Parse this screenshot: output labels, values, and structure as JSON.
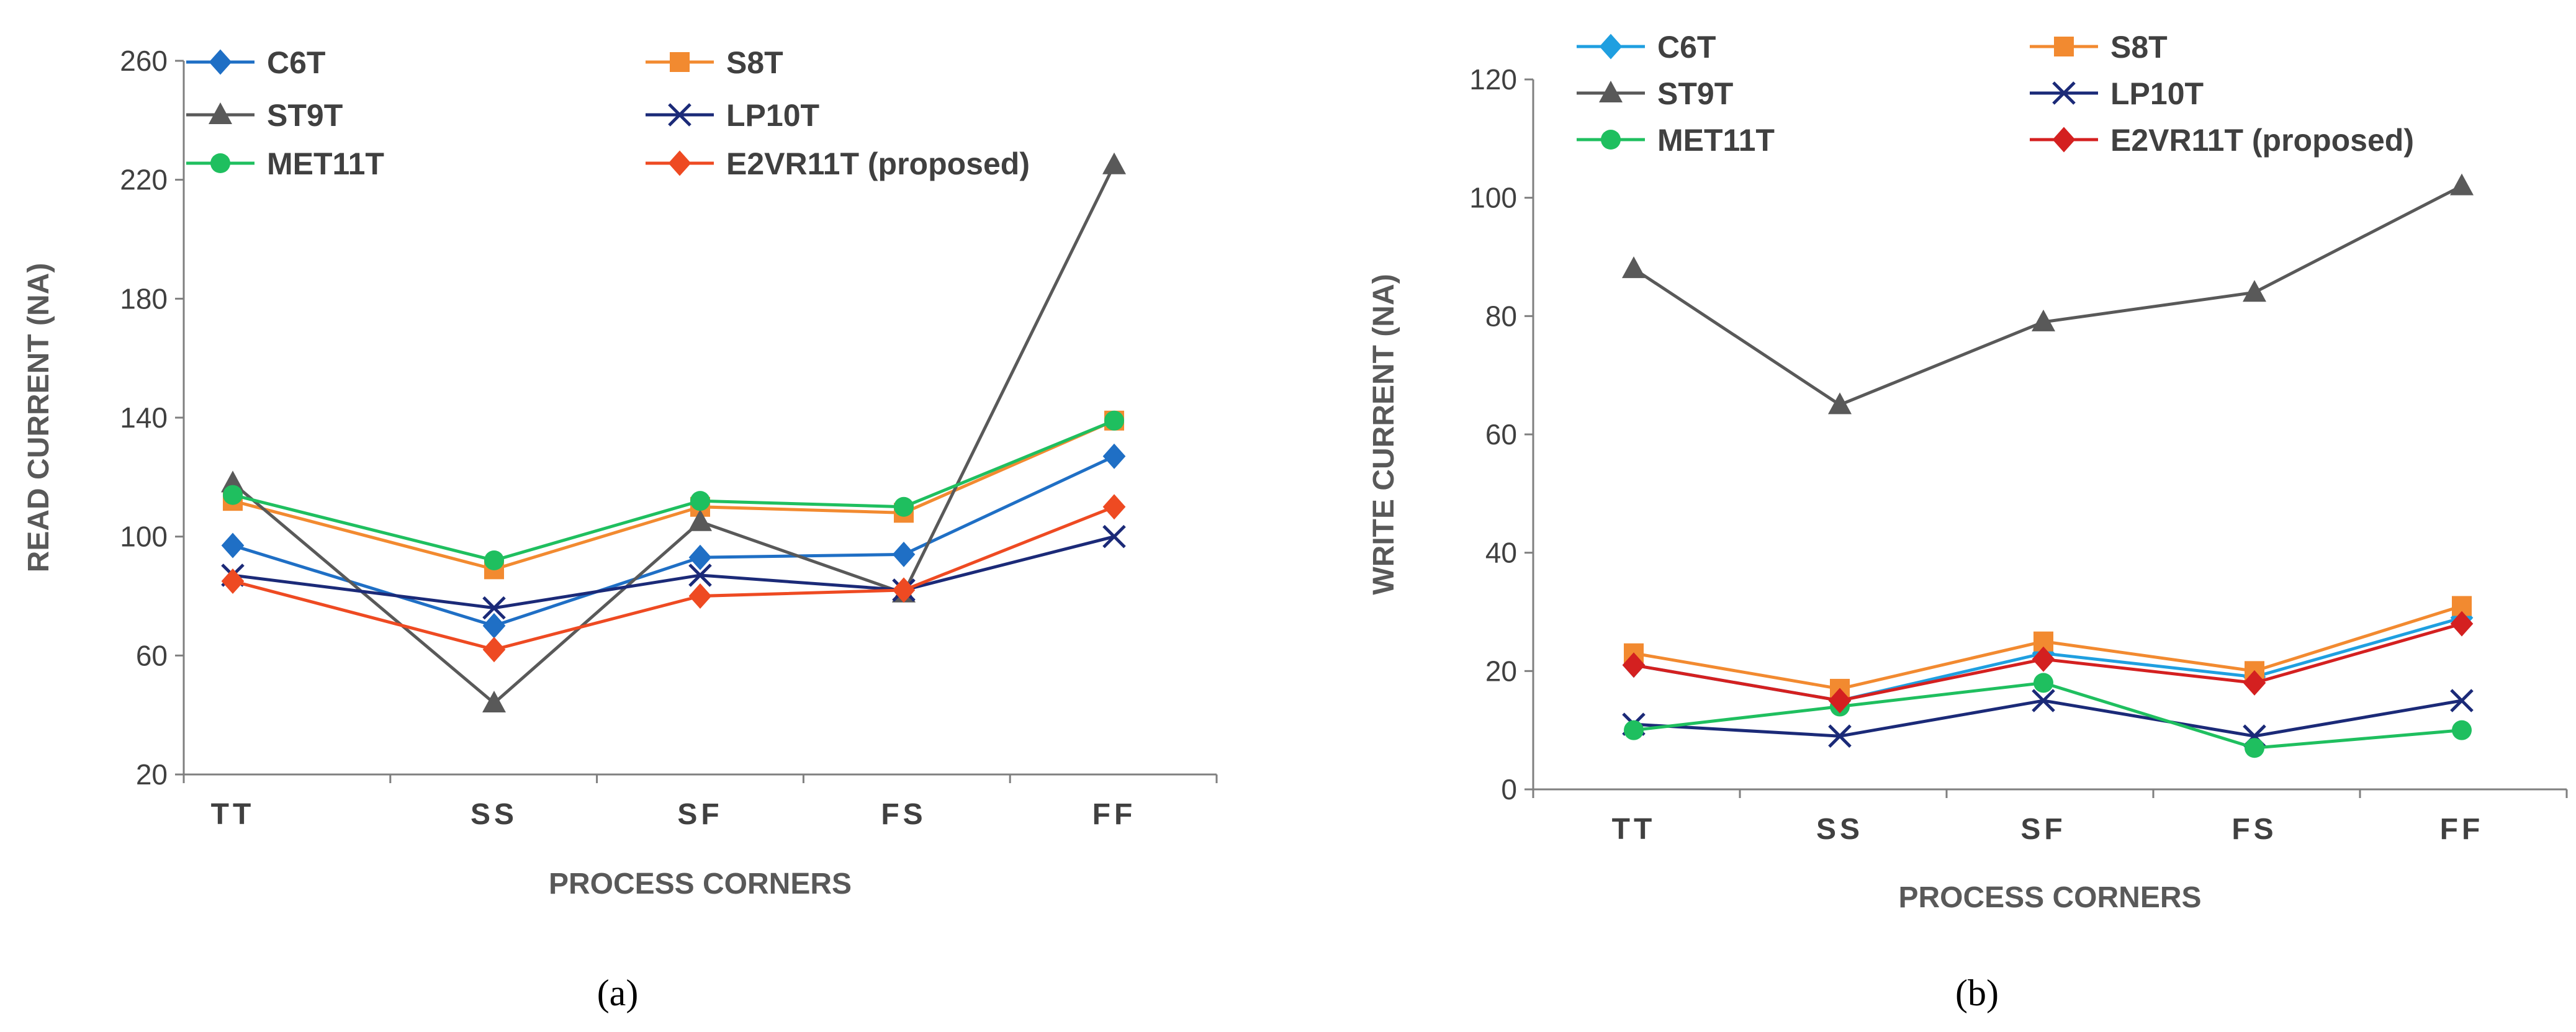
{
  "chart_data": [
    {
      "type": "line",
      "panel": "(a)",
      "categories": [
        "TT",
        "SS",
        "SF",
        "FS",
        "FF"
      ],
      "ylabel": "READ CURRENT (NA)",
      "xlabel": "PROCESS CORNERS",
      "ylim": [
        20,
        260
      ],
      "yticks": [
        "20",
        "60",
        "100",
        "140",
        "180",
        "220",
        "260"
      ],
      "grid": false,
      "legend_position": "top",
      "series": [
        {
          "name": "C6T",
          "color": "#1f6fc5",
          "marker": "diamond",
          "values": [
            97,
            70,
            93,
            94,
            127
          ]
        },
        {
          "name": "S8T",
          "color": "#f28a30",
          "marker": "square",
          "values": [
            112,
            89,
            110,
            108,
            139
          ]
        },
        {
          "name": "ST9T",
          "color": "#595959",
          "marker": "triangle",
          "values": [
            118,
            44,
            105,
            81,
            225
          ]
        },
        {
          "name": "LP10T",
          "color": "#1b2a78",
          "marker": "x",
          "values": [
            87,
            76,
            87,
            82,
            100
          ]
        },
        {
          "name": "MET11T",
          "color": "#1fbf5f",
          "marker": "circle",
          "values": [
            114,
            92,
            112,
            110,
            139
          ]
        },
        {
          "name": "E2VR11T (proposed)",
          "color": "#ee4a22",
          "marker": "diamond",
          "values": [
            85,
            62,
            80,
            82,
            110
          ]
        }
      ]
    },
    {
      "type": "line",
      "panel": "(b)",
      "categories": [
        "TT",
        "SS",
        "SF",
        "FS",
        "FF"
      ],
      "ylabel": "WRITE CURRENT (NA)",
      "xlabel": "PROCESS CORNERS",
      "ylim": [
        0,
        120
      ],
      "yticks": [
        "0",
        "20",
        "40",
        "60",
        "80",
        "100",
        "120"
      ],
      "grid": false,
      "legend_position": "top",
      "series": [
        {
          "name": "C6T",
          "color": "#1f9fe0",
          "marker": "diamond",
          "values": [
            21,
            15,
            23,
            19,
            29
          ]
        },
        {
          "name": "S8T",
          "color": "#f28a30",
          "marker": "square",
          "values": [
            23,
            17,
            25,
            20,
            31
          ]
        },
        {
          "name": "ST9T",
          "color": "#595959",
          "marker": "triangle",
          "values": [
            88,
            65,
            79,
            84,
            102
          ]
        },
        {
          "name": "LP10T",
          "color": "#1b2a78",
          "marker": "x",
          "values": [
            11,
            9,
            15,
            9,
            15
          ]
        },
        {
          "name": "MET11T",
          "color": "#1fbf5f",
          "marker": "circle",
          "values": [
            10,
            14,
            18,
            7,
            10
          ]
        },
        {
          "name": "E2VR11T (proposed)",
          "color": "#d42020",
          "marker": "diamond",
          "values": [
            21,
            15,
            22,
            18,
            28
          ]
        }
      ]
    }
  ]
}
